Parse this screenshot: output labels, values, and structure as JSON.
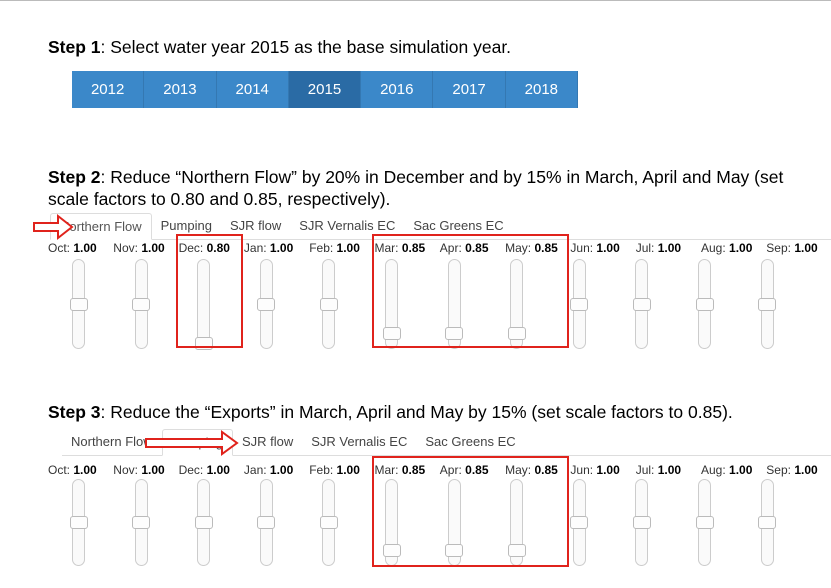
{
  "step1": {
    "label": "Step 1",
    "text": ": Select water year 2015 as the base simulation year."
  },
  "years": {
    "items": [
      "2012",
      "2013",
      "2014",
      "2015",
      "2016",
      "2017",
      "2018"
    ],
    "selected": "2015"
  },
  "step2": {
    "label": "Step 2",
    "text": ": Reduce “Northern Flow” by 20% in December and by 15% in March, April and May (set scale factors to 0.80 and 0.85, respectively).",
    "tabs": [
      "Northern Flow",
      "Pumping",
      "SJR flow",
      "SJR Vernalis EC",
      "Sac Greens EC"
    ],
    "active_tab": "Northern Flow",
    "sliders": [
      {
        "month": "Oct:",
        "value": "1.00",
        "boxed": false
      },
      {
        "month": "Nov:",
        "value": "1.00",
        "boxed": false
      },
      {
        "month": "Dec:",
        "value": "0.80",
        "boxed": true
      },
      {
        "month": "Jan:",
        "value": "1.00",
        "boxed": false
      },
      {
        "month": "Feb:",
        "value": "1.00",
        "boxed": false
      },
      {
        "month": "Mar:",
        "value": "0.85",
        "boxed": true
      },
      {
        "month": "Apr:",
        "value": "0.85",
        "boxed": true
      },
      {
        "month": "May:",
        "value": "0.85",
        "boxed": true
      },
      {
        "month": "Jun:",
        "value": "1.00",
        "boxed": false
      },
      {
        "month": "Jul:",
        "value": "1.00",
        "boxed": false
      },
      {
        "month": "Aug:",
        "value": "1.00",
        "boxed": false
      },
      {
        "month": "Sep:",
        "value": "1.00",
        "boxed": false
      }
    ]
  },
  "step3": {
    "label": "Step 3",
    "text": ": Reduce the “Exports” in March, April and May by 15% (set scale factors to 0.85).",
    "tabs": [
      "Northern Flow",
      "Pumping",
      "SJR flow",
      "SJR Vernalis EC",
      "Sac Greens EC"
    ],
    "active_tab": "Pumping",
    "sliders": [
      {
        "month": "Oct:",
        "value": "1.00",
        "boxed": false
      },
      {
        "month": "Nov:",
        "value": "1.00",
        "boxed": false
      },
      {
        "month": "Dec:",
        "value": "1.00",
        "boxed": false
      },
      {
        "month": "Jan:",
        "value": "1.00",
        "boxed": false
      },
      {
        "month": "Feb:",
        "value": "1.00",
        "boxed": false
      },
      {
        "month": "Mar:",
        "value": "0.85",
        "boxed": true
      },
      {
        "month": "Apr:",
        "value": "0.85",
        "boxed": true
      },
      {
        "month": "May:",
        "value": "0.85",
        "boxed": true
      },
      {
        "month": "Jun:",
        "value": "1.00",
        "boxed": false
      },
      {
        "month": "Jul:",
        "value": "1.00",
        "boxed": false
      },
      {
        "month": "Aug:",
        "value": "1.00",
        "boxed": false
      },
      {
        "month": "Sep:",
        "value": "1.00",
        "boxed": false
      }
    ]
  },
  "slider_min": 0.8,
  "slider_max": 1.2
}
